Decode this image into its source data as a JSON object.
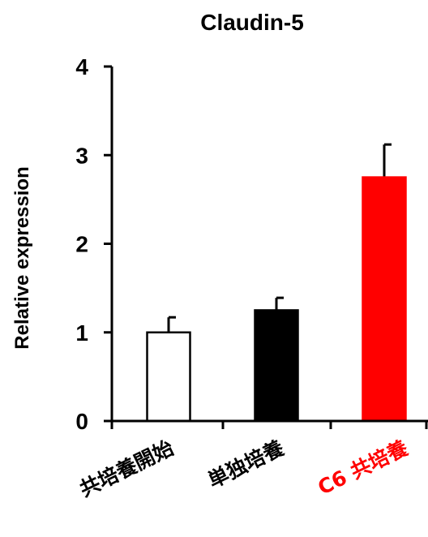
{
  "chart_data": {
    "type": "bar",
    "title": "Claudin-5",
    "ylabel": "Relative expression",
    "xlabel": "",
    "ylim": [
      0,
      4
    ],
    "yticks": [
      "0",
      "1",
      "2",
      "3",
      "4"
    ],
    "categories": [
      "共培養開始",
      "単独培養",
      "C6 共培養"
    ],
    "values": [
      1.0,
      1.25,
      2.75
    ],
    "errors": [
      0.17,
      0.14,
      0.37
    ],
    "bar_colors": [
      "#ffffff",
      "#000000",
      "#ff0000"
    ],
    "label_colors": [
      "#000000",
      "#000000",
      "#ff0000"
    ],
    "grid": false,
    "legend": "none"
  }
}
